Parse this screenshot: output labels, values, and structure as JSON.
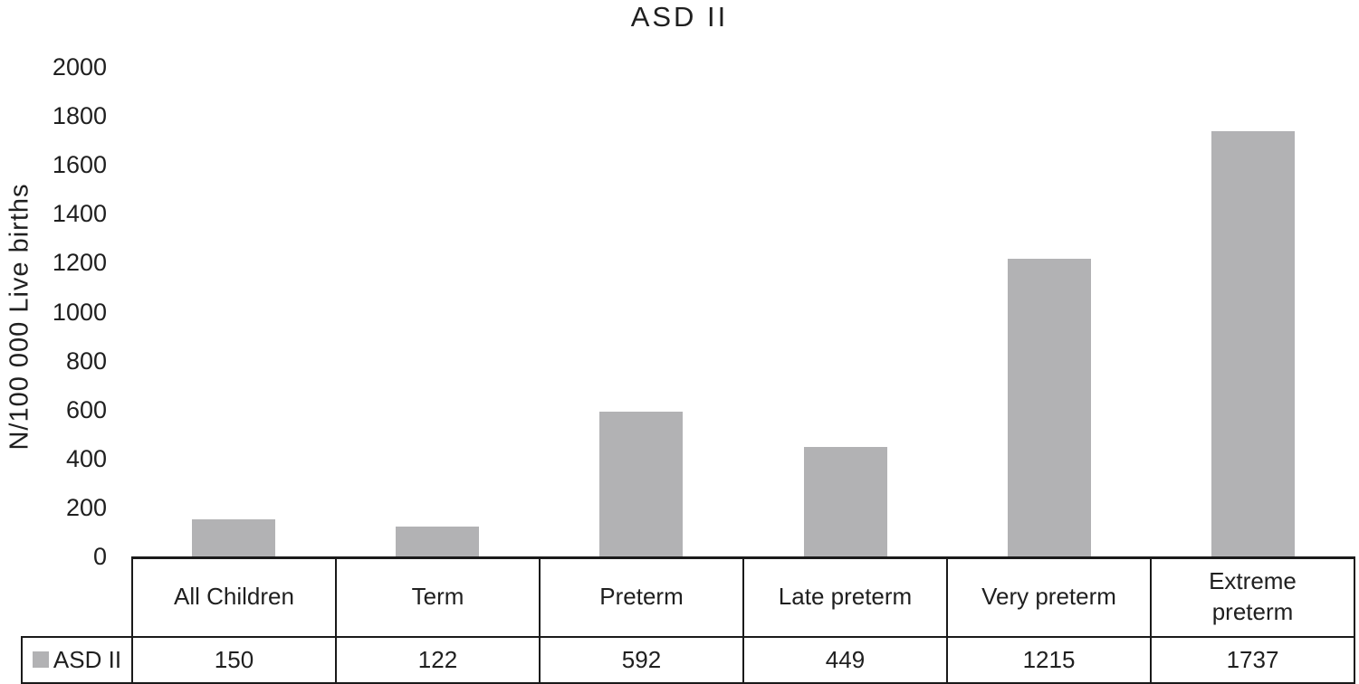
{
  "chart_data": {
    "type": "bar",
    "title": "ASD II",
    "xlabel": "",
    "ylabel": "N/100 000 Live births",
    "categories": [
      "All Children",
      "Term",
      "Preterm",
      "Late preterm",
      "Very preterm",
      "Extreme preterm"
    ],
    "series": [
      {
        "name": "ASD II",
        "values": [
          150,
          122,
          592,
          449,
          1215,
          1737
        ]
      }
    ],
    "ylim": [
      0,
      2000
    ],
    "yticks": [
      2000,
      1800,
      1600,
      1400,
      1200,
      1000,
      800,
      600,
      400,
      200,
      0
    ],
    "grid": false,
    "legend_position": "bottom-left-of-data-table",
    "bar_color": "#b2b2b4",
    "has_data_table": true
  }
}
